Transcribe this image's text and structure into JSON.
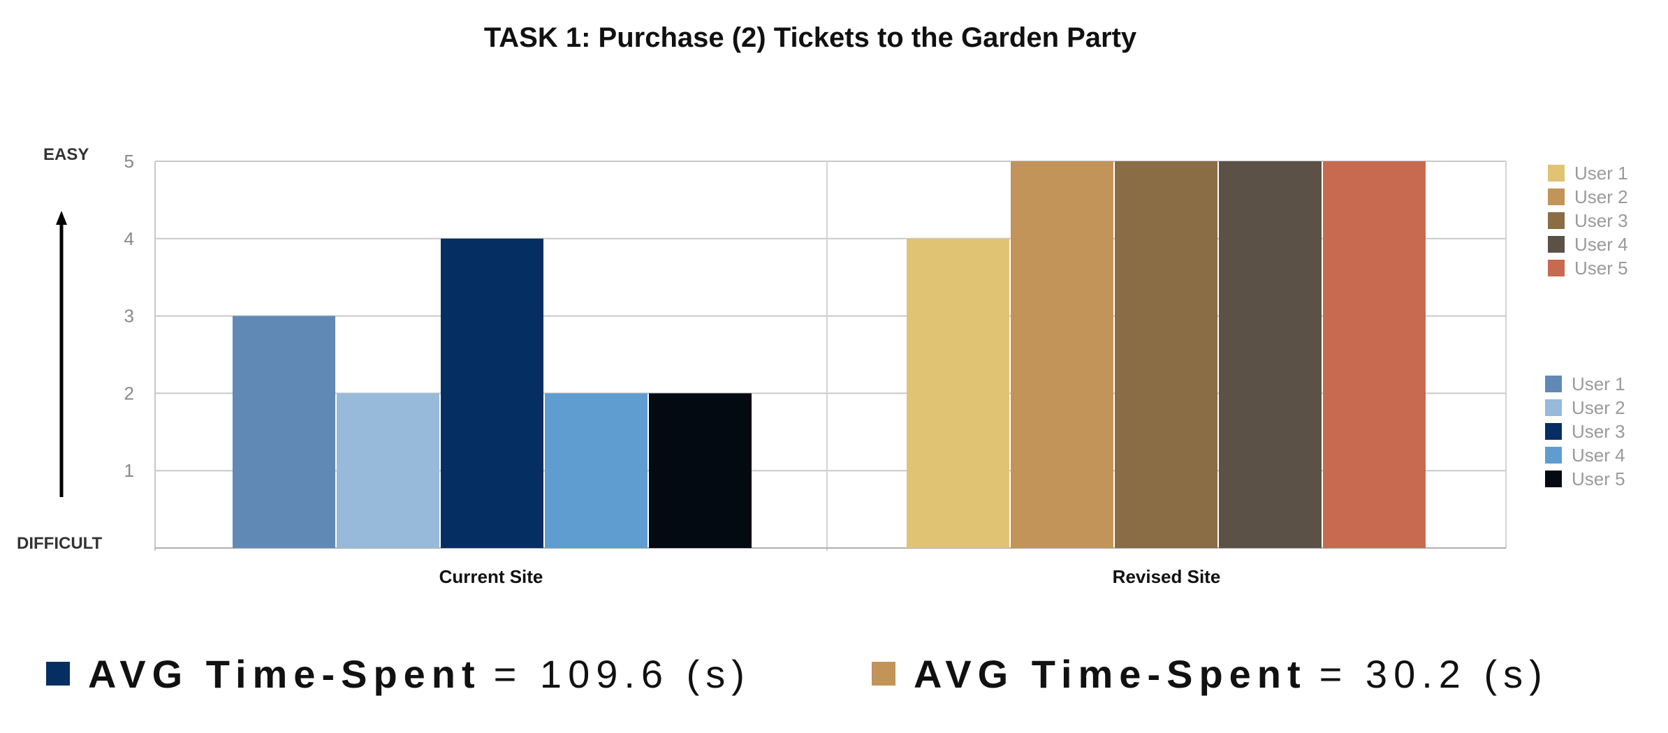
{
  "chart_data": {
    "type": "bar",
    "title": "TASK 1: Purchase (2) Tickets to the Garden Party",
    "categories": [
      "Current Site",
      "Revised Site"
    ],
    "ylim": [
      0,
      5
    ],
    "yticks": [
      1,
      2,
      3,
      4,
      5
    ],
    "grid": true,
    "y_annotations": {
      "top": "EASY",
      "bottom": "DIFFICULT"
    },
    "groups": [
      {
        "category": "Current Site",
        "series": [
          {
            "name": "User 1",
            "value": 3,
            "color": "#6189b6"
          },
          {
            "name": "User 2",
            "value": 2,
            "color": "#97badb"
          },
          {
            "name": "User 3",
            "value": 4,
            "color": "#052e63"
          },
          {
            "name": "User 4",
            "value": 2,
            "color": "#5f9dd0"
          },
          {
            "name": "User 5",
            "value": 2,
            "color": "#030a12"
          }
        ]
      },
      {
        "category": "Revised Site",
        "series": [
          {
            "name": "User 1",
            "value": 4,
            "color": "#e0c373"
          },
          {
            "name": "User 2",
            "value": 5,
            "color": "#c29459"
          },
          {
            "name": "User 3",
            "value": 5,
            "color": "#8a6c45"
          },
          {
            "name": "User 4",
            "value": 5,
            "color": "#5c5146"
          },
          {
            "name": "User 5",
            "value": 5,
            "color": "#c86a4f"
          }
        ]
      }
    ],
    "legends": [
      {
        "placement": "right-top",
        "entries": [
          {
            "name": "User 1",
            "color": "#e0c373"
          },
          {
            "name": "User 2",
            "color": "#c29459"
          },
          {
            "name": "User 3",
            "color": "#8a6c45"
          },
          {
            "name": "User 4",
            "color": "#5c5146"
          },
          {
            "name": "User 5",
            "color": "#c86a4f"
          }
        ]
      },
      {
        "placement": "right-middle",
        "entries": [
          {
            "name": "User 1",
            "color": "#6189b6"
          },
          {
            "name": "User 2",
            "color": "#97badb"
          },
          {
            "name": "User 3",
            "color": "#052e63"
          },
          {
            "name": "User 4",
            "color": "#5f9dd0"
          },
          {
            "name": "User 5",
            "color": "#030a12"
          }
        ]
      }
    ]
  },
  "summary": [
    {
      "label": "AVG Time-Spent",
      "value": "= 109.6 (s)",
      "color": "#052e63"
    },
    {
      "label": "AVG Time-Spent",
      "value": "= 30.2 (s)",
      "color": "#c29459"
    }
  ]
}
